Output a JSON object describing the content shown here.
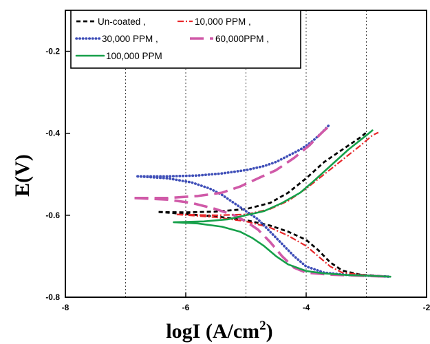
{
  "chart_data": {
    "type": "line",
    "xlabel_main": "logI (A/cm",
    "xlabel_sup": "2",
    "xlabel_tail": ")",
    "ylabel": "E(V)",
    "xlim": [
      -8,
      -2
    ],
    "ylim": [
      -0.8,
      -0.1
    ],
    "x_ticks": [
      -8,
      -6,
      -4,
      -2
    ],
    "x_tick_labels": [
      "-8",
      "-6",
      "-4",
      "-2"
    ],
    "y_ticks": [
      -0.8,
      -0.6,
      -0.4,
      -0.2
    ],
    "y_tick_labels": [
      "-0.8",
      "-0.6",
      "-0.4",
      "-0.2"
    ],
    "x_gridlines": [
      -7,
      -6,
      -5,
      -4,
      -3
    ],
    "grid": "dotted vertical",
    "legend_position": "top-left",
    "legend": [
      {
        "label": "Un-coated ,",
        "series": 0
      },
      {
        "label": "10,000 PPM ,",
        "series": 1
      },
      {
        "label": "30,000 PPM ,",
        "series": 2
      },
      {
        "label": "60,000PPM ,",
        "series": 3
      },
      {
        "label": "100,000 PPM",
        "series": 4
      }
    ],
    "series": [
      {
        "name": "Un-coated",
        "color": "#000000",
        "style": "dashed",
        "anodic": [
          [
            -6.45,
            -0.592
          ],
          [
            -6.0,
            -0.593
          ],
          [
            -5.5,
            -0.591
          ],
          [
            -5.0,
            -0.585
          ],
          [
            -4.6,
            -0.57
          ],
          [
            -4.3,
            -0.545
          ],
          [
            -4.0,
            -0.51
          ],
          [
            -3.7,
            -0.47
          ],
          [
            -3.4,
            -0.44
          ],
          [
            -3.1,
            -0.41
          ],
          [
            -3.0,
            -0.398
          ]
        ],
        "cathodic": [
          [
            -6.45,
            -0.592
          ],
          [
            -5.5,
            -0.603
          ],
          [
            -5.0,
            -0.612
          ],
          [
            -4.6,
            -0.625
          ],
          [
            -4.3,
            -0.64
          ],
          [
            -4.0,
            -0.66
          ],
          [
            -3.8,
            -0.685
          ],
          [
            -3.6,
            -0.715
          ],
          [
            -3.4,
            -0.735
          ],
          [
            -3.1,
            -0.745
          ],
          [
            -2.8,
            -0.748
          ],
          [
            -2.6,
            -0.75
          ]
        ]
      },
      {
        "name": "10,000 PPM",
        "color": "#e8272a",
        "style": "dash-dot",
        "anodic": [
          [
            -6.15,
            -0.598
          ],
          [
            -5.5,
            -0.6
          ],
          [
            -5.0,
            -0.598
          ],
          [
            -4.6,
            -0.585
          ],
          [
            -4.3,
            -0.565
          ],
          [
            -4.0,
            -0.535
          ],
          [
            -3.7,
            -0.5
          ],
          [
            -3.4,
            -0.465
          ],
          [
            -3.1,
            -0.43
          ],
          [
            -2.9,
            -0.405
          ],
          [
            -2.8,
            -0.398
          ]
        ],
        "cathodic": [
          [
            -6.15,
            -0.598
          ],
          [
            -5.5,
            -0.605
          ],
          [
            -5.0,
            -0.615
          ],
          [
            -4.6,
            -0.63
          ],
          [
            -4.3,
            -0.65
          ],
          [
            -4.0,
            -0.675
          ],
          [
            -3.8,
            -0.7
          ],
          [
            -3.6,
            -0.725
          ],
          [
            -3.4,
            -0.74
          ],
          [
            -3.0,
            -0.746
          ],
          [
            -2.6,
            -0.75
          ]
        ]
      },
      {
        "name": "30,000 PPM",
        "color": "#3f4fb8",
        "style": "dotted",
        "anodic": [
          [
            -6.8,
            -0.505
          ],
          [
            -6.3,
            -0.505
          ],
          [
            -5.8,
            -0.503
          ],
          [
            -5.4,
            -0.498
          ],
          [
            -5.0,
            -0.49
          ],
          [
            -4.7,
            -0.48
          ],
          [
            -4.5,
            -0.47
          ],
          [
            -4.3,
            -0.455
          ],
          [
            -4.1,
            -0.44
          ],
          [
            -3.9,
            -0.42
          ],
          [
            -3.75,
            -0.4
          ],
          [
            -3.62,
            -0.38
          ]
        ],
        "cathodic": [
          [
            -6.8,
            -0.505
          ],
          [
            -6.3,
            -0.51
          ],
          [
            -5.9,
            -0.52
          ],
          [
            -5.6,
            -0.535
          ],
          [
            -5.4,
            -0.55
          ],
          [
            -5.2,
            -0.57
          ],
          [
            -5.0,
            -0.59
          ],
          [
            -4.8,
            -0.61
          ],
          [
            -4.6,
            -0.64
          ],
          [
            -4.4,
            -0.67
          ],
          [
            -4.2,
            -0.7
          ],
          [
            -4.0,
            -0.725
          ],
          [
            -3.7,
            -0.74
          ],
          [
            -3.3,
            -0.746
          ],
          [
            -2.9,
            -0.748
          ],
          [
            -2.6,
            -0.75
          ]
        ]
      },
      {
        "name": "60,000PPM",
        "color": "#d05aa8",
        "style": "long-dash",
        "anodic": [
          [
            -6.85,
            -0.558
          ],
          [
            -6.3,
            -0.558
          ],
          [
            -5.8,
            -0.553
          ],
          [
            -5.4,
            -0.545
          ],
          [
            -5.1,
            -0.53
          ],
          [
            -4.8,
            -0.51
          ],
          [
            -4.5,
            -0.49
          ],
          [
            -4.2,
            -0.46
          ],
          [
            -3.95,
            -0.43
          ],
          [
            -3.75,
            -0.4
          ],
          [
            -3.6,
            -0.38
          ]
        ],
        "cathodic": [
          [
            -6.85,
            -0.558
          ],
          [
            -6.3,
            -0.562
          ],
          [
            -5.9,
            -0.57
          ],
          [
            -5.5,
            -0.585
          ],
          [
            -5.2,
            -0.6
          ],
          [
            -5.0,
            -0.615
          ],
          [
            -4.8,
            -0.635
          ],
          [
            -4.6,
            -0.665
          ],
          [
            -4.4,
            -0.7
          ],
          [
            -4.2,
            -0.728
          ],
          [
            -4.0,
            -0.74
          ],
          [
            -3.6,
            -0.745
          ],
          [
            -3.0,
            -0.748
          ],
          [
            -2.6,
            -0.75
          ]
        ]
      },
      {
        "name": "100,000 PPM",
        "color": "#16a04a",
        "style": "solid",
        "anodic": [
          [
            -6.2,
            -0.617
          ],
          [
            -5.7,
            -0.615
          ],
          [
            -5.3,
            -0.61
          ],
          [
            -5.0,
            -0.6
          ],
          [
            -4.7,
            -0.59
          ],
          [
            -4.4,
            -0.57
          ],
          [
            -4.1,
            -0.545
          ],
          [
            -3.9,
            -0.52
          ],
          [
            -3.6,
            -0.48
          ],
          [
            -3.3,
            -0.44
          ],
          [
            -3.0,
            -0.405
          ],
          [
            -2.9,
            -0.393
          ]
        ],
        "cathodic": [
          [
            -6.2,
            -0.617
          ],
          [
            -5.8,
            -0.62
          ],
          [
            -5.4,
            -0.628
          ],
          [
            -5.1,
            -0.64
          ],
          [
            -4.9,
            -0.655
          ],
          [
            -4.7,
            -0.675
          ],
          [
            -4.5,
            -0.7
          ],
          [
            -4.3,
            -0.72
          ],
          [
            -4.0,
            -0.736
          ],
          [
            -3.7,
            -0.742
          ],
          [
            -3.3,
            -0.746
          ],
          [
            -2.9,
            -0.748
          ],
          [
            -2.6,
            -0.75
          ]
        ]
      }
    ]
  }
}
